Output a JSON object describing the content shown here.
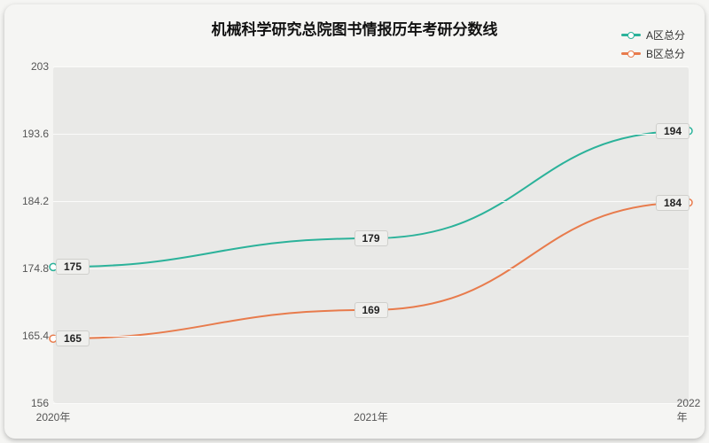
{
  "chart": {
    "type": "line",
    "title": "机械科学研究总院图书情报历年考研分数线",
    "title_fontsize": 17,
    "background_color": "#f5f5f3",
    "plot_background": "#e9e9e7",
    "grid_color": "#fbfbfa",
    "text_color": "#333333",
    "xlabels": [
      "2020年",
      "2021年",
      "2022年"
    ],
    "ylim": [
      156,
      203
    ],
    "yticks": [
      156,
      165.4,
      174.8,
      184.2,
      193.6,
      203
    ],
    "tick_fontsize": 12,
    "label_fontsize": 12,
    "series": [
      {
        "name": "A区总分",
        "color": "#2bb29a",
        "line_width": 2,
        "values": [
          175,
          179,
          194
        ],
        "marker": "circle",
        "marker_size": 5
      },
      {
        "name": "B区总分",
        "color": "#e87b4c",
        "line_width": 2,
        "values": [
          165,
          169,
          184
        ],
        "marker": "circle",
        "marker_size": 5
      }
    ],
    "legend": {
      "position": "top-right"
    },
    "point_label_style": {
      "background": "#efefed",
      "border_color": "#cfcfcc",
      "font_weight": "bold",
      "fontsize": 12
    }
  }
}
